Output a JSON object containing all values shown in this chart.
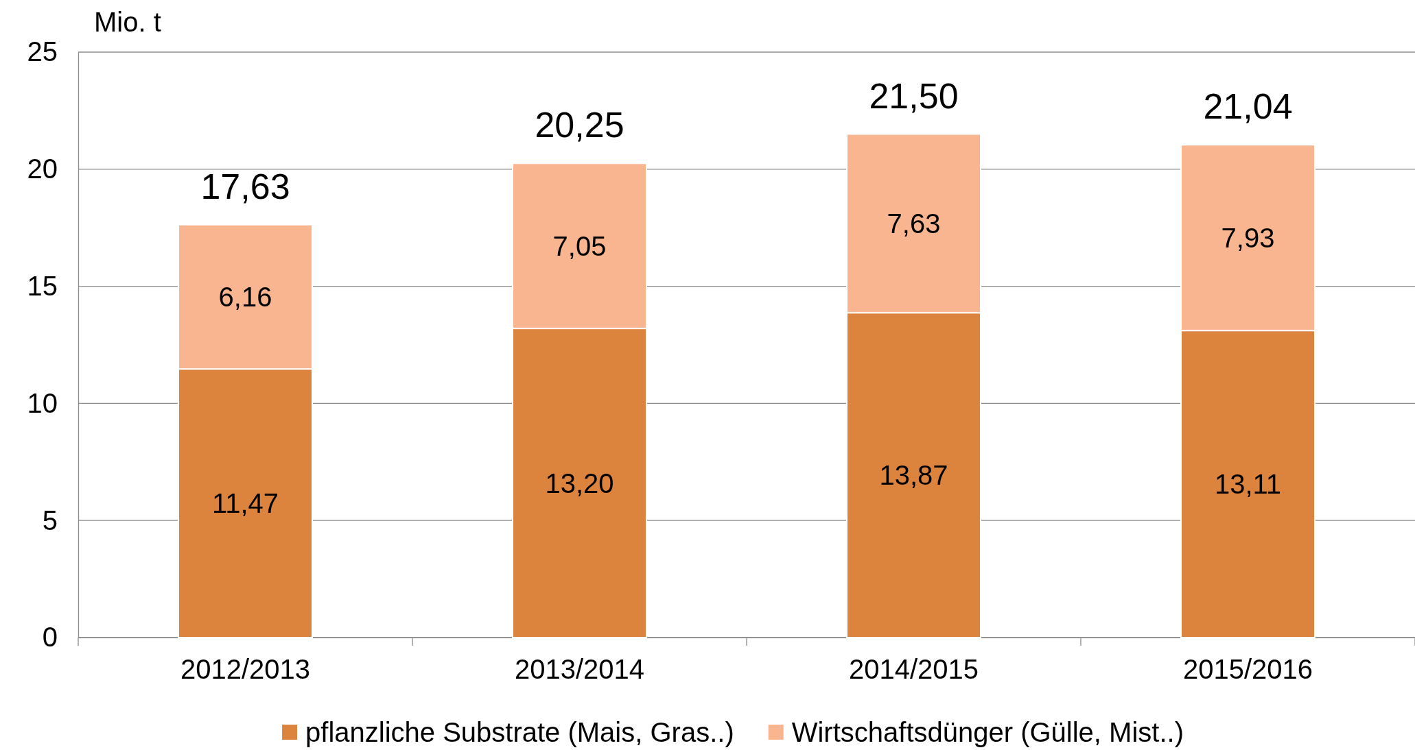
{
  "chart_data": {
    "type": "bar",
    "ylabel": "Mio. t",
    "categories": [
      "2012/2013",
      "2013/2014",
      "2014/2015",
      "2015/2016"
    ],
    "stacked": true,
    "grid": "y",
    "legend": "bottom",
    "ylim": [
      0,
      25
    ],
    "yticks": [
      0,
      5,
      10,
      15,
      20,
      25
    ],
    "totals": [
      "17,63",
      "20,25",
      "21,50",
      "21,04"
    ],
    "series": [
      {
        "name": "pflanzliche Substrate (Mais, Gras..)",
        "color": "#dc843e",
        "values": [
          11.47,
          13.2,
          13.87,
          13.11
        ],
        "value_labels": [
          "11,47",
          "13,20",
          "13,87",
          "13,11"
        ]
      },
      {
        "name": "Wirtschaftsdünger (Gülle, Mist..)",
        "color": "#f8b590",
        "values": [
          6.16,
          7.05,
          7.63,
          7.93
        ],
        "value_labels": [
          "6,16",
          "7,05",
          "7,63",
          "7,93"
        ]
      }
    ]
  }
}
